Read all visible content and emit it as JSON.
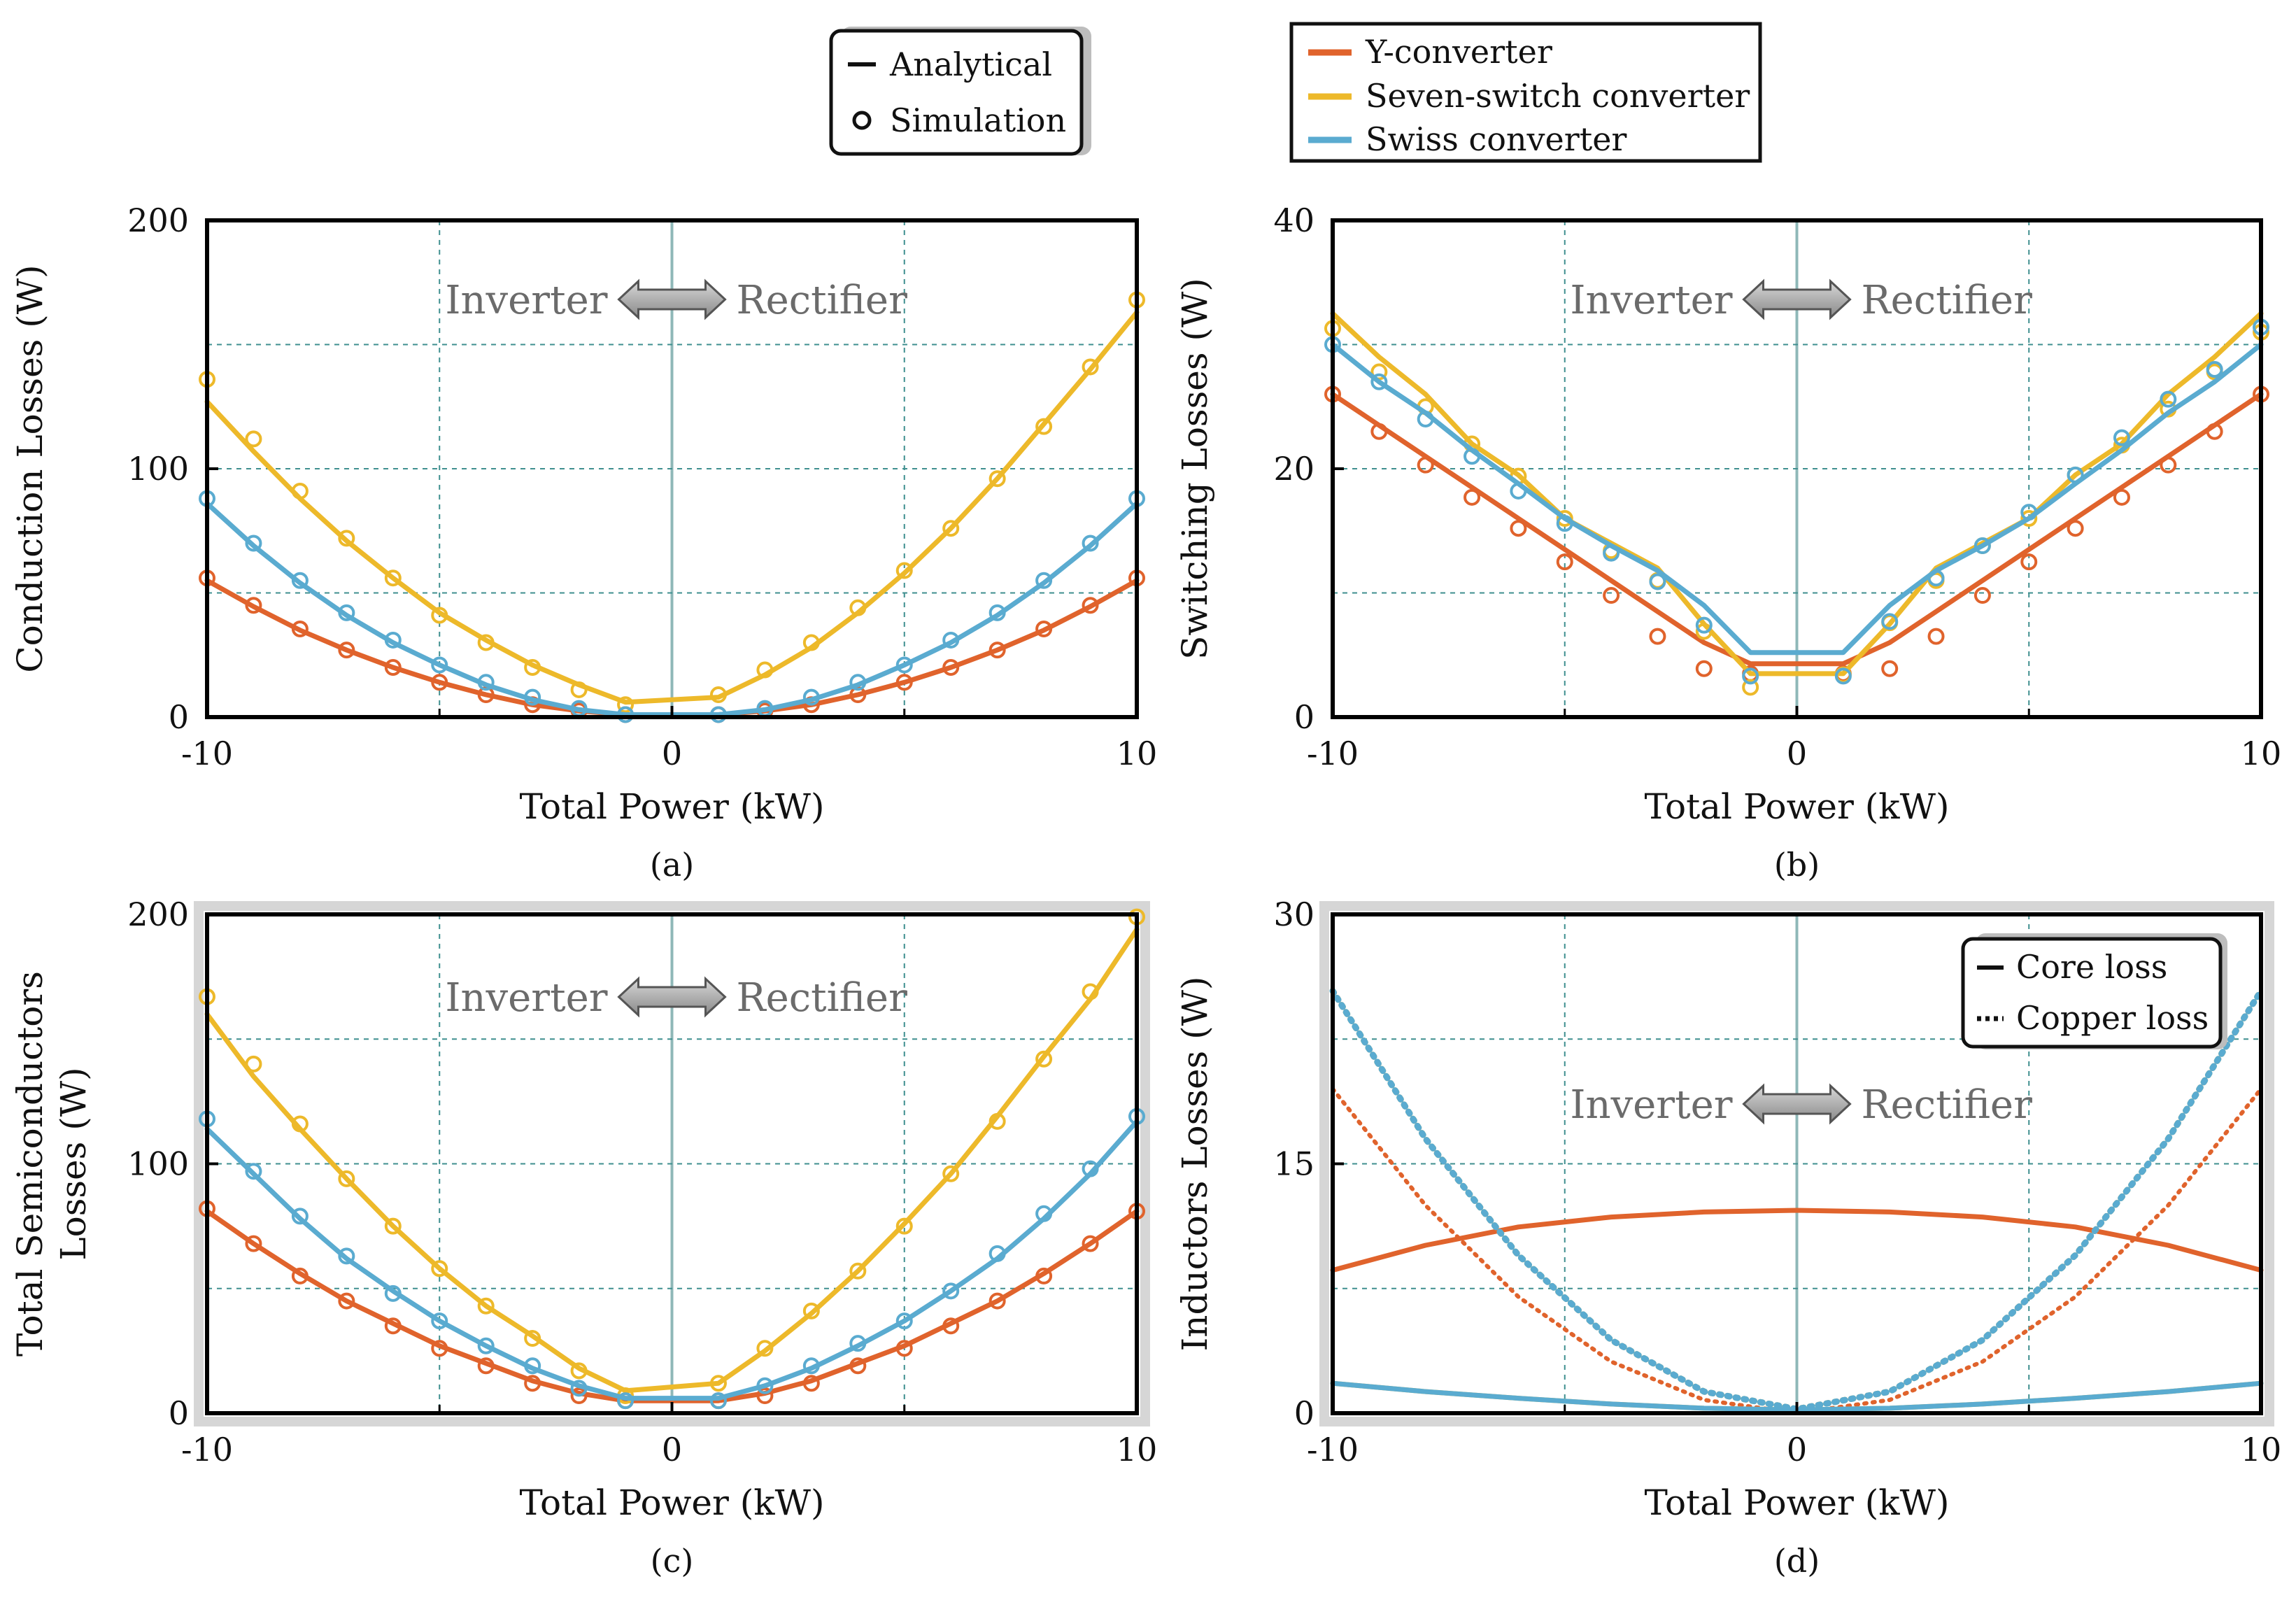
{
  "colors": {
    "y_converter": "#E0632C",
    "seven_switch": "#EDB92A",
    "swiss": "#5AABD0",
    "grid_minor": "#3f8f8f",
    "grid_center": "#8fb8b8"
  },
  "legend_type": {
    "analytical": "Analytical",
    "simulation": "Simulation"
  },
  "legend_series": {
    "y": "Y-converter",
    "seven": "Seven-switch converter",
    "swiss": "Swiss converter"
  },
  "legend_d": {
    "core": "Core loss",
    "copper": "Copper loss"
  },
  "direction": {
    "left": "Inverter",
    "right": "Rectifier"
  },
  "chart_data": [
    {
      "id": "a",
      "type": "line",
      "caption": "(a)",
      "xlabel": "Total Power (kW)",
      "ylabel": [
        "Conduction Losses (W)"
      ],
      "xlim": [
        -10,
        10
      ],
      "ylim": [
        0,
        200
      ],
      "xticks": [
        -10,
        0,
        10
      ],
      "xtick_labels": [
        "-10",
        "0",
        "10"
      ],
      "yticks": [
        0,
        100,
        200
      ],
      "ytick_labels": [
        "0",
        "100",
        "200"
      ],
      "grid": true,
      "series": [
        {
          "name": "Y-converter",
          "key": "y",
          "analytical_x": [
            -10,
            -9,
            -8,
            -7,
            -6,
            -5,
            -4,
            -3,
            -2,
            -1,
            1,
            2,
            3,
            4,
            5,
            6,
            7,
            8,
            9,
            10
          ],
          "analytical_y": [
            55,
            44.5,
            35,
            27,
            20,
            14,
            9,
            5,
            2.5,
            1,
            1,
            2.5,
            5,
            9,
            14,
            20,
            27,
            35,
            44.5,
            55
          ],
          "sim_x": [
            -10,
            -9,
            -8,
            -7,
            -6,
            -5,
            -4,
            -3,
            -2,
            -1,
            1,
            2,
            3,
            4,
            5,
            6,
            7,
            8,
            9,
            10
          ],
          "sim_y": [
            56,
            45,
            35.5,
            27,
            20,
            14,
            9,
            5,
            2.5,
            1,
            1,
            2.5,
            5,
            9,
            14,
            20,
            27,
            35.5,
            45,
            56
          ]
        },
        {
          "name": "Seven-switch converter",
          "key": "seven",
          "analytical_x": [
            -10,
            -9,
            -8,
            -7,
            -6,
            -5,
            -4,
            -3,
            -2,
            -1,
            1,
            2,
            3,
            4,
            5,
            6,
            7,
            8,
            9,
            10
          ],
          "analytical_y": [
            127,
            107,
            88,
            71,
            56,
            42,
            31,
            21,
            13,
            6,
            8,
            17,
            28,
            42,
            58,
            76,
            96,
            118,
            140,
            163
          ],
          "sim_x": [
            -10,
            -9,
            -8,
            -7,
            -6,
            -5,
            -4,
            -3,
            -2,
            -1,
            1,
            2,
            3,
            4,
            5,
            6,
            7,
            8,
            9,
            10
          ],
          "sim_y": [
            136,
            112,
            91,
            72,
            56,
            41,
            30,
            20,
            11,
            5,
            9,
            19,
            30,
            44,
            59,
            76,
            96,
            117,
            141,
            168
          ]
        },
        {
          "name": "Swiss converter",
          "key": "swiss",
          "analytical_x": [
            -10,
            -9,
            -8,
            -7,
            -6,
            -5,
            -4,
            -3,
            -2,
            -1,
            1,
            2,
            3,
            4,
            5,
            6,
            7,
            8,
            9,
            10
          ],
          "analytical_y": [
            86,
            69,
            54,
            41,
            30,
            21,
            13,
            7,
            3,
            1,
            1,
            3,
            7,
            13,
            21,
            30,
            41,
            54,
            69,
            86
          ],
          "sim_x": [
            -10,
            -9,
            -8,
            -7,
            -6,
            -5,
            -4,
            -3,
            -2,
            -1,
            1,
            2,
            3,
            4,
            5,
            6,
            7,
            8,
            9,
            10
          ],
          "sim_y": [
            88,
            70,
            55,
            42,
            31,
            21,
            14,
            8,
            3.5,
            1,
            1,
            3.5,
            8,
            14,
            21,
            31,
            42,
            55,
            70,
            88
          ]
        }
      ]
    },
    {
      "id": "b",
      "type": "line",
      "caption": "(b)",
      "xlabel": "Total Power (kW)",
      "ylabel": [
        "Switching Losses (W)"
      ],
      "xlim": [
        -10,
        10
      ],
      "ylim": [
        0,
        40
      ],
      "xticks": [
        -10,
        0,
        10
      ],
      "xtick_labels": [
        "-10",
        "0",
        "10"
      ],
      "yticks": [
        0,
        20,
        40
      ],
      "ytick_labels": [
        "0",
        "20",
        "40"
      ],
      "grid": true,
      "series": [
        {
          "name": "Y-converter",
          "key": "y",
          "analytical_x": [
            -10,
            -9,
            -8,
            -7,
            -6,
            -5,
            -4,
            -3,
            -2,
            -1,
            1,
            2,
            3,
            4,
            5,
            6,
            7,
            8,
            9,
            10
          ],
          "analytical_y": [
            26,
            23.5,
            21,
            18.5,
            16,
            13.5,
            11,
            8.5,
            6,
            4.3,
            4.3,
            6,
            8.5,
            11,
            13.5,
            16,
            18.5,
            21,
            23.5,
            26
          ],
          "sim_x": [
            -10,
            -9,
            -8,
            -7,
            -6,
            -5,
            -4,
            -3,
            -2,
            -1,
            1,
            2,
            3,
            4,
            5,
            6,
            7,
            8,
            9,
            10
          ],
          "sim_y": [
            26,
            23,
            20.3,
            17.7,
            15.2,
            12.5,
            9.8,
            6.5,
            3.9,
            3.5,
            3.5,
            3.9,
            6.5,
            9.8,
            12.5,
            15.2,
            17.7,
            20.3,
            23,
            26
          ]
        },
        {
          "name": "Seven-switch converter",
          "key": "seven",
          "analytical_x": [
            -10,
            -9,
            -8,
            -7,
            -6,
            -5,
            -4,
            -3,
            -2,
            -1,
            1,
            2,
            3,
            4,
            5,
            6,
            7,
            8,
            9,
            10
          ],
          "analytical_y": [
            32.5,
            29,
            26,
            22,
            19.5,
            16,
            14,
            12,
            7.5,
            3.5,
            3.5,
            7.5,
            12,
            14,
            16,
            19.5,
            22,
            26,
            29,
            32.5
          ],
          "sim_x": [
            -10,
            -9,
            -8,
            -7,
            -6,
            -5,
            -4,
            -3,
            -2,
            -1,
            1,
            2,
            3,
            4,
            5,
            6,
            7,
            8,
            9,
            10
          ],
          "sim_y": [
            31.3,
            27.8,
            25,
            22,
            19.4,
            16,
            13.4,
            11,
            6.9,
            2.4,
            3.4,
            7.6,
            11,
            13.8,
            16,
            19.5,
            21.9,
            24.8,
            27.8,
            31
          ]
        },
        {
          "name": "Swiss converter",
          "key": "swiss",
          "analytical_x": [
            -10,
            -9,
            -8,
            -7,
            -6,
            -5,
            -4,
            -3,
            -2,
            -1,
            1,
            2,
            3,
            4,
            5,
            6,
            7,
            8,
            9,
            10
          ],
          "analytical_y": [
            30,
            27,
            24.5,
            21.5,
            18.8,
            16,
            13.8,
            11.8,
            9,
            5.2,
            5.2,
            9,
            11.8,
            13.8,
            16,
            18.8,
            21.5,
            24.5,
            27,
            30
          ],
          "sim_x": [
            -10,
            -9,
            -8,
            -7,
            -6,
            -5,
            -4,
            -3,
            -2,
            -1,
            1,
            2,
            3,
            4,
            5,
            6,
            7,
            8,
            9,
            10
          ],
          "sim_y": [
            30,
            27,
            24,
            21,
            18.2,
            15.6,
            13.2,
            10.9,
            7.4,
            3.3,
            3.3,
            7.7,
            11.2,
            13.8,
            16.5,
            19.5,
            22.5,
            25.6,
            28,
            31.4
          ]
        }
      ]
    },
    {
      "id": "c",
      "type": "line",
      "caption": "(c)",
      "xlabel": "Total Power (kW)",
      "ylabel": [
        "Total Semiconductors",
        "Losses (W)"
      ],
      "xlim": [
        -10,
        10
      ],
      "ylim": [
        0,
        200
      ],
      "xticks": [
        -10,
        0,
        10
      ],
      "xtick_labels": [
        "-10",
        "0",
        "10"
      ],
      "yticks": [
        0,
        100,
        200
      ],
      "ytick_labels": [
        "0",
        "100",
        "200"
      ],
      "grid": true,
      "series": [
        {
          "name": "Y-converter",
          "key": "y",
          "analytical_x": [
            -10,
            -9,
            -8,
            -7,
            -6,
            -5,
            -4,
            -3,
            -2,
            -1,
            1,
            2,
            3,
            4,
            5,
            6,
            7,
            8,
            9,
            10
          ],
          "analytical_y": [
            81,
            68,
            56,
            45,
            36,
            27,
            20,
            13,
            8,
            5,
            5,
            8,
            13,
            20,
            27,
            36,
            45,
            56,
            68,
            81
          ],
          "sim_x": [
            -10,
            -9,
            -8,
            -7,
            -6,
            -5,
            -4,
            -3,
            -2,
            -1,
            1,
            2,
            3,
            4,
            5,
            6,
            7,
            8,
            9,
            10
          ],
          "sim_y": [
            82,
            68,
            55,
            45,
            35,
            26,
            19,
            12,
            7,
            5,
            5,
            7,
            12,
            19,
            26,
            35,
            45,
            55,
            68,
            81
          ]
        },
        {
          "name": "Seven-switch converter",
          "key": "seven",
          "analytical_x": [
            -10,
            -9,
            -8,
            -7,
            -6,
            -5,
            -4,
            -3,
            -2,
            -1,
            1,
            2,
            3,
            4,
            5,
            6,
            7,
            8,
            9,
            10
          ],
          "analytical_y": [
            160,
            135,
            114,
            94,
            75,
            58,
            43,
            31,
            18,
            9,
            12,
            25,
            40,
            57,
            76,
            96,
            119,
            143,
            166,
            194
          ],
          "sim_x": [
            -10,
            -9,
            -8,
            -7,
            -6,
            -5,
            -4,
            -3,
            -2,
            -1,
            1,
            2,
            3,
            4,
            5,
            6,
            7,
            8,
            9,
            10
          ],
          "sim_y": [
            167,
            140,
            116,
            94,
            75,
            58,
            43,
            30,
            17,
            7,
            12,
            26,
            41,
            57,
            75,
            96,
            117,
            142,
            169,
            199
          ]
        },
        {
          "name": "Swiss converter",
          "key": "swiss",
          "analytical_x": [
            -10,
            -9,
            -8,
            -7,
            -6,
            -5,
            -4,
            -3,
            -2,
            -1,
            1,
            2,
            3,
            4,
            5,
            6,
            7,
            8,
            9,
            10
          ],
          "analytical_y": [
            114,
            96,
            78,
            62,
            49,
            37,
            27,
            18,
            11,
            6,
            6,
            11,
            18,
            27,
            37,
            49,
            62,
            78,
            96,
            117
          ],
          "sim_x": [
            -10,
            -9,
            -8,
            -7,
            -6,
            -5,
            -4,
            -3,
            -2,
            -1,
            1,
            2,
            3,
            4,
            5,
            6,
            7,
            8,
            9,
            10
          ],
          "sim_y": [
            118,
            97,
            79,
            63,
            48,
            37,
            27,
            19,
            10,
            5,
            5,
            11,
            19,
            28,
            37,
            49,
            64,
            80,
            98,
            119
          ]
        }
      ]
    },
    {
      "id": "d",
      "type": "line",
      "caption": "(d)",
      "xlabel": "Total Power (kW)",
      "ylabel": [
        "Inductors Losses (W)"
      ],
      "xlim": [
        -10,
        10
      ],
      "ylim": [
        0,
        30
      ],
      "xticks": [
        -10,
        0,
        10
      ],
      "xtick_labels": [
        "-10",
        "0",
        "10"
      ],
      "yticks": [
        0,
        15,
        30
      ],
      "ytick_labels": [
        "0",
        "15",
        "30"
      ],
      "grid": true,
      "series": [
        {
          "name": "Y-converter",
          "key": "y",
          "kind": "core",
          "analytical_x": [
            -10,
            -8,
            -6,
            -4,
            -2,
            0,
            2,
            4,
            6,
            8,
            10
          ],
          "analytical_y": [
            8.6,
            10.1,
            11.2,
            11.8,
            12.1,
            12.2,
            12.1,
            11.8,
            11.2,
            10.1,
            8.6
          ]
        },
        {
          "name": "Y-converter",
          "key": "y",
          "kind": "copper",
          "analytical_x": [
            -10,
            -8,
            -6,
            -4,
            -2,
            0,
            2,
            4,
            6,
            8,
            10
          ],
          "analytical_y": [
            19.5,
            12.5,
            7,
            3.1,
            0.8,
            0,
            0.8,
            3.1,
            7,
            12.5,
            19.5
          ]
        },
        {
          "name": "Seven-switch converter",
          "key": "seven",
          "kind": "core",
          "analytical_x": [
            -10,
            -8,
            -6,
            -4,
            -2,
            0,
            2,
            4,
            6,
            8,
            10
          ],
          "analytical_y": [
            1.8,
            1.3,
            0.9,
            0.55,
            0.3,
            0.2,
            0.3,
            0.55,
            0.9,
            1.3,
            1.8
          ]
        },
        {
          "name": "Seven-switch converter",
          "key": "seven",
          "kind": "copper",
          "analytical_x": [
            -10,
            -8,
            -6,
            -4,
            -2,
            0,
            2,
            4,
            6,
            8,
            10
          ],
          "analytical_y": [
            25.4,
            16.5,
            9.5,
            4.4,
            1.3,
            0.25,
            1.3,
            4.4,
            9.5,
            16.5,
            25.4
          ]
        },
        {
          "name": "Swiss converter",
          "key": "swiss",
          "kind": "core",
          "analytical_x": [
            -10,
            -8,
            -6,
            -4,
            -2,
            0,
            2,
            4,
            6,
            8,
            10
          ],
          "analytical_y": [
            1.8,
            1.3,
            0.9,
            0.55,
            0.3,
            0.2,
            0.3,
            0.55,
            0.9,
            1.3,
            1.8
          ]
        },
        {
          "name": "Swiss converter",
          "key": "swiss",
          "kind": "copper",
          "analytical_x": [
            -10,
            -8,
            -6,
            -4,
            -2,
            0,
            2,
            4,
            6,
            8,
            10
          ],
          "analytical_y": [
            25.4,
            16.5,
            9.5,
            4.4,
            1.3,
            0.25,
            1.3,
            4.4,
            9.5,
            16.5,
            25.4
          ]
        }
      ]
    }
  ]
}
